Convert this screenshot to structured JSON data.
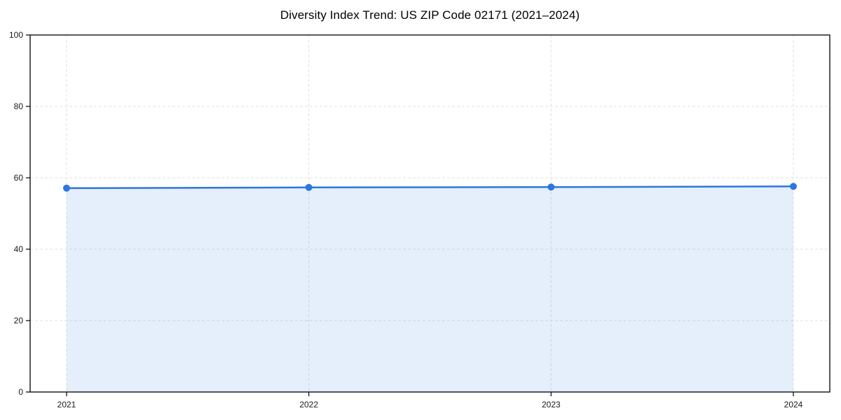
{
  "chart_data": {
    "type": "area",
    "title": "Diversity Index Trend: US ZIP Code 02171 (2021–2024)",
    "xlabel": "",
    "ylabel": "",
    "categories": [
      "2021",
      "2022",
      "2023",
      "2024"
    ],
    "series": [
      {
        "name": "Diversity Index",
        "values": [
          57.1,
          57.3,
          57.4,
          57.6
        ]
      }
    ],
    "ylim": [
      0,
      100
    ],
    "yticks": [
      0,
      20,
      40,
      60,
      80,
      100
    ],
    "grid": true,
    "grid_style": "dashed",
    "legend_position": "none",
    "marker": "circle",
    "colors": {
      "line": "#2b77e0",
      "marker": "#2b77e0",
      "fill": "#2b77e0",
      "fill_opacity": 0.12,
      "grid": "#e2e2e2",
      "spine": "#111111",
      "tick_text": "#1a1a1a",
      "background": "#ffffff"
    }
  }
}
